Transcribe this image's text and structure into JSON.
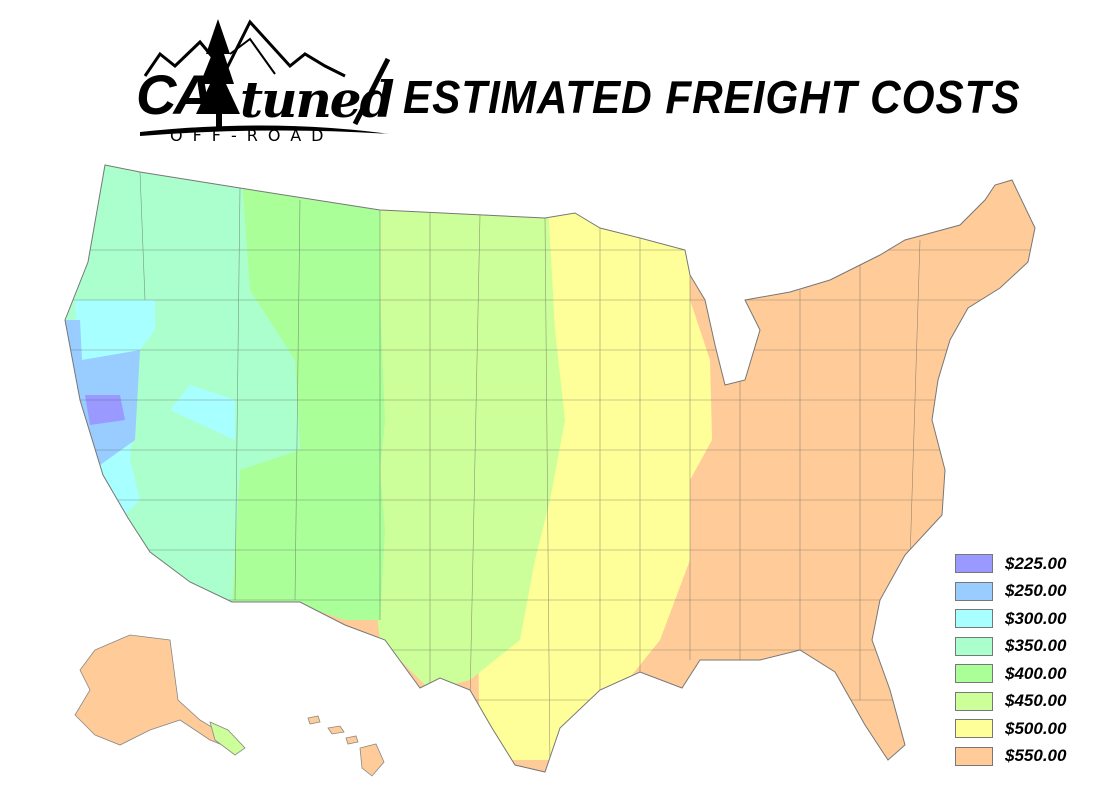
{
  "logo": {
    "brand_top": "CA",
    "brand_script": "tuned",
    "brand_sub": "OFF-ROAD"
  },
  "header": {
    "title": "ESTIMATED FREIGHT COSTS"
  },
  "legend": {
    "items": [
      {
        "label": "$225.00",
        "color": "#9999ff"
      },
      {
        "label": "$250.00",
        "color": "#99ccff"
      },
      {
        "label": "$300.00",
        "color": "#a8ffff"
      },
      {
        "label": "$350.00",
        "color": "#aaffcc"
      },
      {
        "label": "$400.00",
        "color": "#aaff99"
      },
      {
        "label": "$450.00",
        "color": "#ccff99"
      },
      {
        "label": "$500.00",
        "color": "#ffff99"
      },
      {
        "label": "$550.00",
        "color": "#ffcc99"
      }
    ]
  }
}
